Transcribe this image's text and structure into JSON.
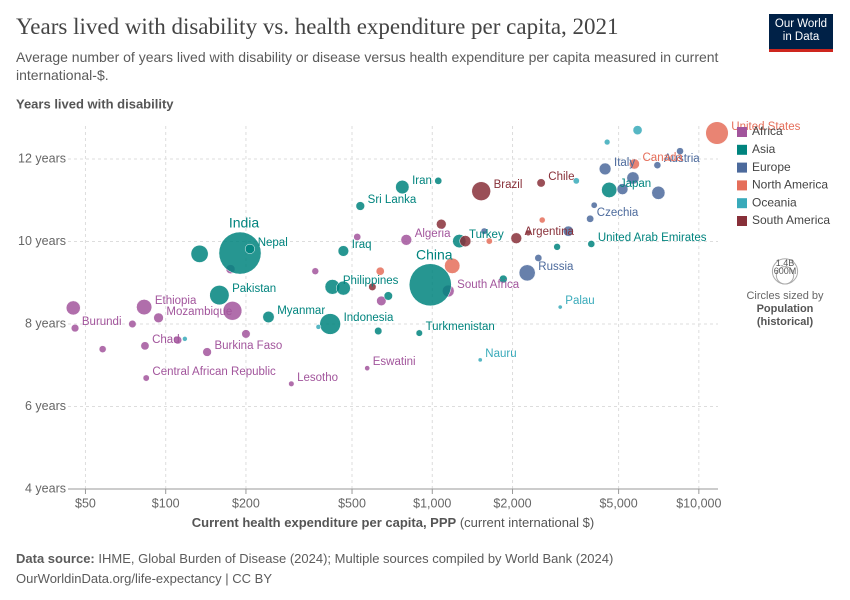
{
  "chart_data": {
    "type": "scatter",
    "title": "Years lived with disability vs. health expenditure per capita, 2021",
    "subtitle": "Average number of years lived with disability or disease versus health expenditure per capita measured in current international-$.",
    "logo": [
      "Our World",
      "in Data"
    ],
    "ylabel": "Years lived with disability",
    "xlabel": "Current health expenditure per capita, PPP",
    "xlabel_unit": "(current international $)",
    "log_x": true,
    "grid": true,
    "xlim": [
      43,
      11800
    ],
    "ylim": [
      4,
      12.8
    ],
    "xticks": [
      {
        "value": 50,
        "label": "$50"
      },
      {
        "value": 100,
        "label": "$100"
      },
      {
        "value": 200,
        "label": "$200"
      },
      {
        "value": 500,
        "label": "$500"
      },
      {
        "value": 1000,
        "label": "$1,000"
      },
      {
        "value": 2000,
        "label": "$2,000"
      },
      {
        "value": 5000,
        "label": "$5,000"
      },
      {
        "value": 10000,
        "label": "$10,000"
      }
    ],
    "yticks": [
      {
        "value": 4,
        "label": "4 years"
      },
      {
        "value": 6,
        "label": "6 years"
      },
      {
        "value": 8,
        "label": "8 years"
      },
      {
        "value": 10,
        "label": "10 years"
      },
      {
        "value": 12,
        "label": "12 years"
      }
    ],
    "legend": "right",
    "series": [
      {
        "name": "Africa",
        "color": "#a2559c",
        "labels": [
          "Burundi",
          "Ethiopia",
          "Mozambique",
          "Chad",
          "Burkina Faso",
          "Central African Republic",
          "Lesotho",
          "Eswatini",
          "South Africa",
          "Algeria",
          null,
          null,
          null,
          null,
          null,
          null,
          null,
          null,
          null,
          null
        ],
        "x": [
          45.7,
          83,
          94,
          83.6,
          143,
          84.5,
          296,
          570,
          1148,
          799,
          45,
          178,
          58,
          75,
          111,
          200,
          364,
          523,
          644,
          175
        ],
        "y": [
          7.9,
          8.41,
          8.15,
          7.47,
          7.32,
          6.69,
          6.55,
          6.93,
          8.8,
          10.04,
          8.39,
          8.32,
          7.39,
          8.0,
          7.61,
          7.76,
          9.28,
          10.11,
          8.56,
          9.33
        ],
        "size": [
          13000000,
          126000000,
          32000000,
          18000000,
          22000000,
          5500000,
          2300000,
          1200000,
          60000000,
          45000000,
          99000000,
          213000000,
          9000000,
          12000000,
          15000000,
          20000000,
          8000000,
          10000000,
          30000000,
          25000000
        ]
      },
      {
        "name": "Asia",
        "color": "#00847e",
        "labels": [
          "India",
          "China",
          "Nepal",
          "Pakistan",
          "Indonesia",
          "Myanmar",
          "Philippines",
          "Sri Lanka",
          "Iran",
          "Iraq",
          "Turkey",
          "Turkmenistan",
          "United Arab Emirates",
          "Japan",
          null,
          null,
          null,
          null,
          null,
          null,
          null
        ],
        "x": [
          190,
          983,
          207,
          159,
          414,
          243,
          422,
          537,
          772,
          464,
          1263,
          894,
          3950,
          4610,
          134,
          464,
          684,
          1053,
          1847,
          2940,
          627
        ],
        "y": [
          9.72,
          8.95,
          9.82,
          8.7,
          8.0,
          8.17,
          8.9,
          10.86,
          11.32,
          9.77,
          10.01,
          7.78,
          9.94,
          11.25,
          9.7,
          8.87,
          8.68,
          11.47,
          9.09,
          9.87,
          7.83
        ],
        "size": [
          1410000000,
          1410000000,
          30000000,
          231000000,
          274000000,
          54000000,
          114000000,
          22000000,
          88000000,
          43000000,
          85000000,
          6300000,
          9400000,
          125000000,
          170000000,
          98000000,
          20000000,
          10000000,
          15000000,
          8000000,
          12000000
        ]
      },
      {
        "name": "Europe",
        "color": "#4c6a9c",
        "labels": [
          "Russia",
          "Czechia",
          "Italy",
          "Austria",
          null,
          null,
          null,
          null,
          null,
          null,
          null,
          null
        ],
        "x": [
          2270,
          3910,
          4450,
          6990,
          2500,
          4050,
          5170,
          7050,
          8500,
          5660,
          1566,
          3240
        ],
        "y": [
          9.24,
          10.55,
          11.76,
          11.85,
          9.6,
          10.88,
          11.27,
          11.18,
          12.19,
          11.54,
          10.25,
          10.25
        ],
        "size": [
          144000000,
          10500000,
          59000000,
          9000000,
          10000000,
          5000000,
          47000000,
          83000000,
          9000000,
          67000000,
          6000000,
          38000000
        ]
      },
      {
        "name": "North America",
        "color": "#e56e5a",
        "labels": [
          "United States",
          "Canada",
          null,
          null,
          null,
          null
        ],
        "x": [
          11700,
          5730,
          1188,
          638,
          1637,
          2585
        ],
        "y": [
          12.63,
          11.88,
          9.41,
          9.28,
          10.01,
          10.52
        ],
        "size": [
          335000000,
          38000000,
          127000000,
          17000000,
          5000000,
          4000000
        ]
      },
      {
        "name": "Oceania",
        "color": "#38aaba",
        "labels": [
          "Palau",
          "Nauru",
          null,
          null,
          null,
          null,
          null
        ],
        "x": [
          3020,
          1513,
          374,
          118,
          3470,
          4530,
          5890
        ],
        "y": [
          8.41,
          7.13,
          7.93,
          7.64,
          11.47,
          12.41,
          12.7
        ],
        "size": [
          18000,
          12000,
          900000,
          700000,
          5100000,
          3000000,
          26000000
        ]
      },
      {
        "name": "South America",
        "color": "#883039",
        "labels": [
          "Brazil",
          "Chile",
          "Argentina",
          null,
          null,
          null,
          null
        ],
        "x": [
          1526,
          2560,
          2066,
          1081,
          596,
          2290,
          1330
        ],
        "y": [
          11.22,
          11.42,
          10.08,
          10.42,
          8.9,
          10.21,
          10.01
        ],
        "size": [
          214000000,
          19000000,
          45000000,
          33000000,
          12000000,
          3400000,
          51000000
        ]
      }
    ],
    "size_legend": {
      "title": "Circles sized by",
      "variable": "Population",
      "note": "(historical)",
      "values": [
        {
          "value": 1400000000,
          "label": "1.4B"
        },
        {
          "value": 600000000,
          "label": "600M"
        }
      ]
    },
    "source_label": "Data source:",
    "source": "IHME, Global Burden of Disease (2024); Multiple sources compiled by World Bank (2024)",
    "footer": "OurWorldinData.org/life-expectancy | CC BY"
  }
}
